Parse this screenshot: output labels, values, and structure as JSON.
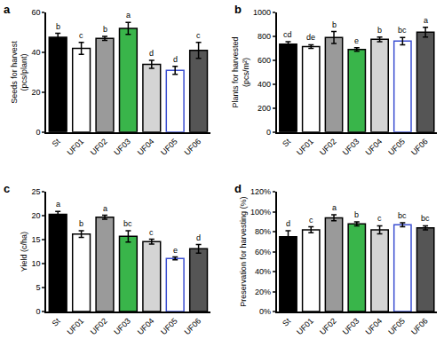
{
  "chart_data": [
    {
      "type": "bar",
      "title": "a",
      "y_label": "Seeds for harvest\n(pcs/plant)",
      "categories": [
        "St",
        "UF01",
        "UF02",
        "UF03",
        "UF04",
        "UF05",
        "UF06"
      ],
      "values": [
        47.5,
        42,
        47,
        52,
        34,
        31,
        41
      ],
      "errors": [
        2,
        3,
        1,
        3,
        2,
        2,
        4
      ],
      "annotations": [
        "b",
        "c",
        "b",
        "a",
        "d",
        "d",
        "c"
      ],
      "colors": [
        "#000000",
        "#ffffff",
        "#9a9a9a",
        "#39b54a",
        "#d4d4d4",
        "#ffffff",
        "#555555"
      ],
      "ylim": [
        0,
        60
      ],
      "yticks": [
        0,
        20,
        40,
        60
      ],
      "grid": false
    },
    {
      "type": "bar",
      "title": "b",
      "y_label": "Plants for harvested\n(pcs/m²)",
      "categories": [
        "St",
        "UF01",
        "UF02",
        "UF03",
        "UF04",
        "UF05",
        "UF06"
      ],
      "values": [
        735,
        715,
        790,
        690,
        775,
        760,
        835
      ],
      "errors": [
        20,
        15,
        50,
        15,
        20,
        30,
        40
      ],
      "annotations": [
        "cd",
        "de",
        "b",
        "e",
        "b",
        "bc",
        "a"
      ],
      "colors": [
        "#000000",
        "#ffffff",
        "#9a9a9a",
        "#39b54a",
        "#d4d4d4",
        "#ffffff",
        "#555555"
      ],
      "ylim": [
        0,
        1000
      ],
      "yticks": [
        0,
        200,
        400,
        600,
        800,
        1000
      ],
      "grid": false
    },
    {
      "type": "bar",
      "title": "c",
      "y_label": "Yield (c/ha)",
      "categories": [
        "St",
        "UF01",
        "UF02",
        "UF03",
        "UF04",
        "UF05",
        "UF06"
      ],
      "values": [
        20.3,
        16.2,
        19.7,
        15.7,
        14.6,
        11.1,
        13.1
      ],
      "errors": [
        0.6,
        0.7,
        0.4,
        1.2,
        0.5,
        0.3,
        0.9
      ],
      "annotations": [
        "a",
        "b",
        "a",
        "bc",
        "c",
        "e",
        "d"
      ],
      "colors": [
        "#000000",
        "#ffffff",
        "#9a9a9a",
        "#39b54a",
        "#d4d4d4",
        "#ffffff",
        "#555555"
      ],
      "ylim": [
        0,
        25
      ],
      "yticks": [
        0,
        5,
        10,
        15,
        20,
        25
      ],
      "grid": false
    },
    {
      "type": "bar",
      "title": "d",
      "y_label": "Preservation for harvesting (%)",
      "categories": [
        "St",
        "UF01",
        "UF02",
        "UF03",
        "UF04",
        "UF05",
        "UF06"
      ],
      "values": [
        75,
        82,
        94,
        88,
        82,
        87,
        84
      ],
      "errors": [
        6,
        3,
        3,
        2,
        4,
        2,
        2
      ],
      "annotations": [
        "d",
        "c",
        "a",
        "b",
        "c",
        "bc",
        "bc"
      ],
      "colors": [
        "#000000",
        "#ffffff",
        "#9a9a9a",
        "#39b54a",
        "#d4d4d4",
        "#ffffff",
        "#555555"
      ],
      "ylim": [
        0,
        120
      ],
      "yticks": [
        {
          "value": 0,
          "label": "0%"
        },
        {
          "value": 20,
          "label": "20%"
        },
        {
          "value": 40,
          "label": "40%"
        },
        {
          "value": 60,
          "label": "60%"
        },
        {
          "value": 80,
          "label": "80%"
        },
        {
          "value": 100,
          "label": "100%"
        },
        {
          "value": 120,
          "label": "120%"
        }
      ],
      "grid": false
    }
  ]
}
